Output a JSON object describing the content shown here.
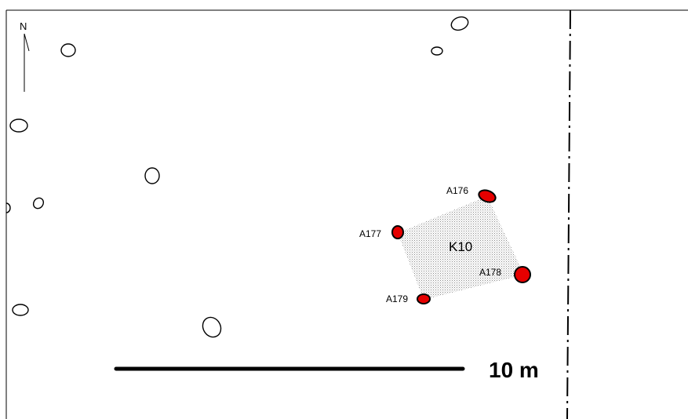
{
  "north_label": "N",
  "features": [
    {
      "id": "A176",
      "label": "A176"
    },
    {
      "id": "A177",
      "label": "A177"
    },
    {
      "id": "A178",
      "label": "A178"
    },
    {
      "id": "A179",
      "label": "A179"
    }
  ],
  "structure_label": "K10",
  "scale": {
    "label": "10 m"
  },
  "colors": {
    "feature_fill": "#e60000",
    "outline": "#000000",
    "stipple": "#9a9a9a"
  }
}
